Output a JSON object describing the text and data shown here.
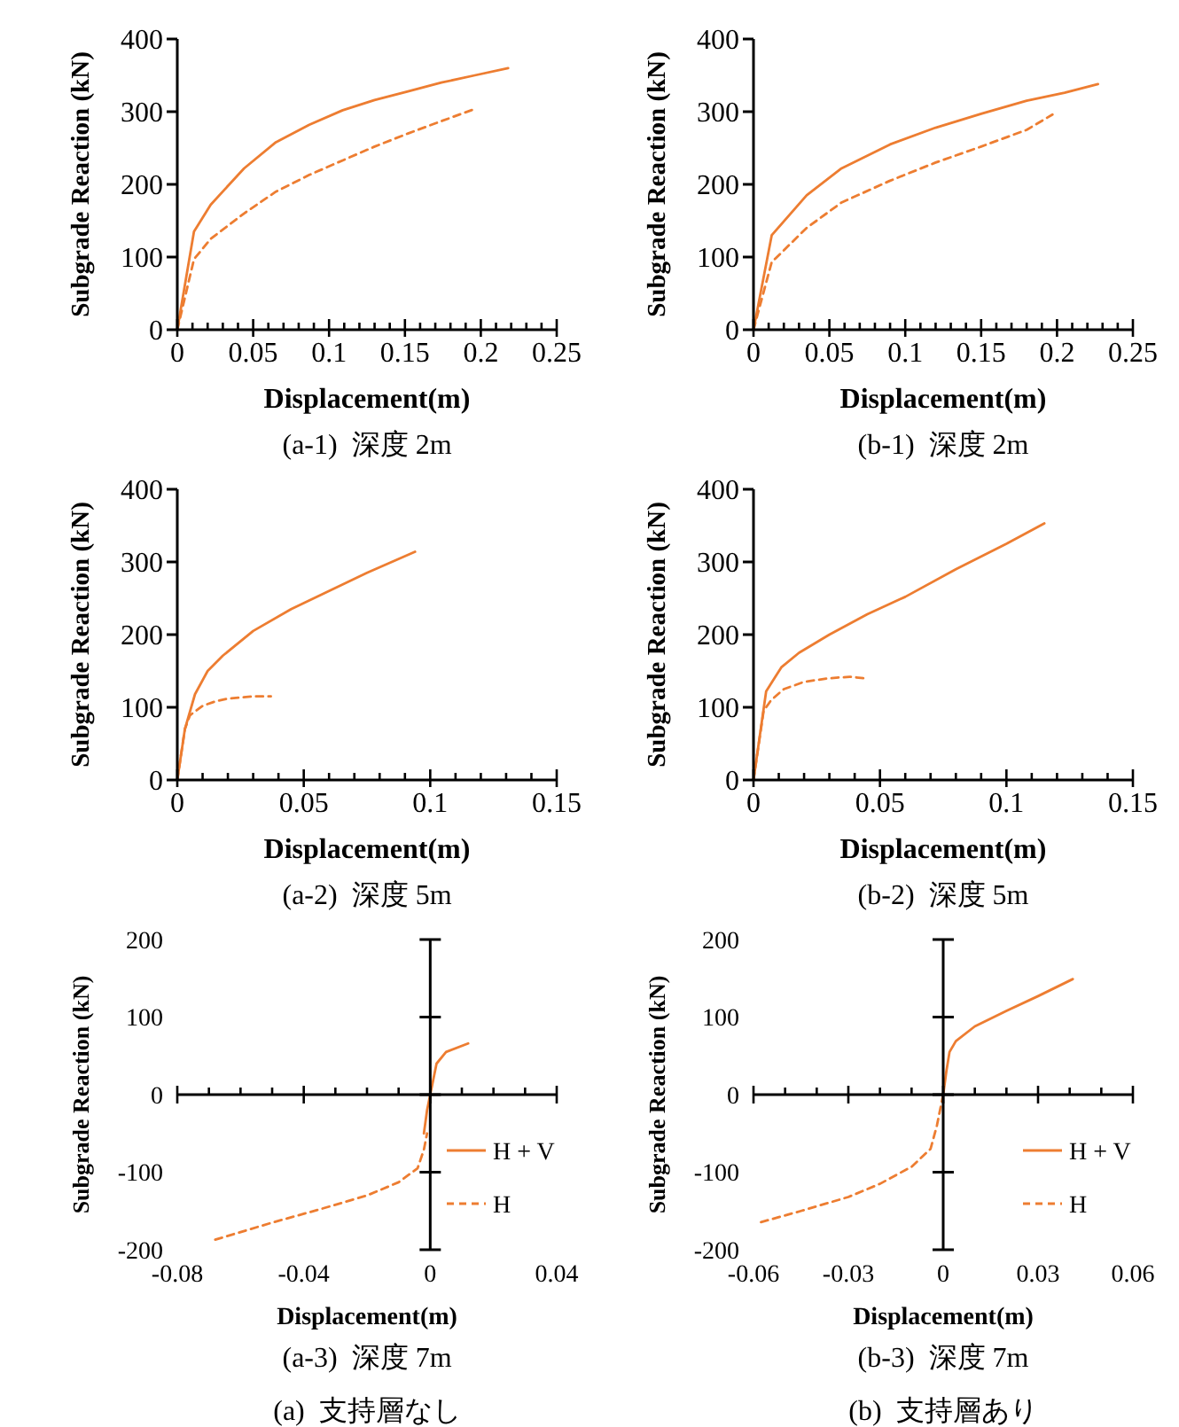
{
  "chart_data": [
    {
      "type": "line",
      "title": "(a-1)  深度 2m",
      "xlabel": "Displacement(m)",
      "ylabel": "Subgrade Reaction (kN)",
      "xlim": [
        0,
        0.25
      ],
      "ylim": [
        0,
        400
      ],
      "yticks": [
        0,
        100,
        200,
        300,
        400
      ],
      "xticks": [
        0,
        {
          "value": 0.01,
          "label": null
        },
        {
          "value": 0.02,
          "label": null
        },
        {
          "value": 0.03,
          "label": null
        },
        {
          "value": 0.04,
          "label": null
        },
        0.05,
        {
          "value": 0.06,
          "label": null
        },
        {
          "value": 0.07,
          "label": null
        },
        {
          "value": 0.08,
          "label": null
        },
        {
          "value": 0.09,
          "label": null
        },
        0.1,
        {
          "value": 0.11,
          "label": null
        },
        {
          "value": 0.12,
          "label": null
        },
        {
          "value": 0.13,
          "label": null
        },
        {
          "value": 0.14,
          "label": null
        },
        0.15,
        {
          "value": 0.16,
          "label": null
        },
        {
          "value": 0.17,
          "label": null
        },
        {
          "value": 0.18,
          "label": null
        },
        {
          "value": 0.19,
          "label": null
        },
        0.2,
        {
          "value": 0.21,
          "label": null
        },
        {
          "value": 0.22,
          "label": null
        },
        {
          "value": 0.23,
          "label": null
        },
        {
          "value": 0.24,
          "label": null
        },
        0.25
      ],
      "series": [
        {
          "color": "#ed7d31",
          "line_style": "solid",
          "x": [
            0,
            0.011,
            0.022,
            0.044,
            0.065,
            0.087,
            0.109,
            0.13,
            0.152,
            0.174,
            0.196,
            0.218
          ],
          "values": [
            0,
            135,
            172,
            222,
            258,
            282,
            302,
            316,
            328,
            340,
            350,
            360
          ]
        },
        {
          "color": "#ed7d31",
          "line_style": "dashed",
          "x": [
            0,
            0.011,
            0.022,
            0.044,
            0.065,
            0.087,
            0.109,
            0.13,
            0.152,
            0.174,
            0.195
          ],
          "values": [
            0,
            97,
            125,
            160,
            190,
            213,
            233,
            252,
            270,
            287,
            303
          ]
        }
      ],
      "grid": false,
      "legend": false
    },
    {
      "type": "line",
      "title": "(b-1)  深度 2m",
      "xlabel": "Displacement(m)",
      "ylabel": "Subgrade Reaction (kN)",
      "xlim": [
        0,
        0.25
      ],
      "ylim": [
        0,
        400
      ],
      "yticks": [
        0,
        100,
        200,
        300,
        400
      ],
      "xticks": [
        0,
        {
          "value": 0.01,
          "label": null
        },
        {
          "value": 0.02,
          "label": null
        },
        {
          "value": 0.03,
          "label": null
        },
        {
          "value": 0.04,
          "label": null
        },
        0.05,
        {
          "value": 0.06,
          "label": null
        },
        {
          "value": 0.07,
          "label": null
        },
        {
          "value": 0.08,
          "label": null
        },
        {
          "value": 0.09,
          "label": null
        },
        0.1,
        {
          "value": 0.11,
          "label": null
        },
        {
          "value": 0.12,
          "label": null
        },
        {
          "value": 0.13,
          "label": null
        },
        {
          "value": 0.14,
          "label": null
        },
        0.15,
        {
          "value": 0.16,
          "label": null
        },
        {
          "value": 0.17,
          "label": null
        },
        {
          "value": 0.18,
          "label": null
        },
        {
          "value": 0.19,
          "label": null
        },
        0.2,
        {
          "value": 0.21,
          "label": null
        },
        {
          "value": 0.22,
          "label": null
        },
        {
          "value": 0.23,
          "label": null
        },
        {
          "value": 0.24,
          "label": null
        },
        0.25
      ],
      "series": [
        {
          "color": "#ed7d31",
          "line_style": "solid",
          "x": [
            0,
            0.012,
            0.035,
            0.058,
            0.09,
            0.12,
            0.15,
            0.18,
            0.205,
            0.227
          ],
          "values": [
            0,
            130,
            185,
            222,
            255,
            278,
            297,
            315,
            326,
            338
          ]
        },
        {
          "color": "#ed7d31",
          "line_style": "dashed",
          "x": [
            0,
            0.012,
            0.035,
            0.058,
            0.09,
            0.12,
            0.15,
            0.18,
            0.197
          ],
          "values": [
            0,
            93,
            140,
            175,
            205,
            230,
            252,
            275,
            296
          ]
        }
      ],
      "grid": false,
      "legend": false
    },
    {
      "type": "line",
      "title": "(a-2)  深度 5m",
      "xlabel": "Displacement(m)",
      "ylabel": "Subgrade Reaction (kN)",
      "xlim": [
        0,
        0.15
      ],
      "ylim": [
        0,
        400
      ],
      "yticks": [
        0,
        100,
        200,
        300,
        400
      ],
      "xticks": [
        0,
        {
          "value": 0.01,
          "label": null
        },
        {
          "value": 0.02,
          "label": null
        },
        {
          "value": 0.03,
          "label": null
        },
        {
          "value": 0.04,
          "label": null
        },
        0.05,
        {
          "value": 0.06,
          "label": null
        },
        {
          "value": 0.07,
          "label": null
        },
        {
          "value": 0.08,
          "label": null
        },
        {
          "value": 0.09,
          "label": null
        },
        0.1,
        {
          "value": 0.11,
          "label": null
        },
        {
          "value": 0.12,
          "label": null
        },
        {
          "value": 0.13,
          "label": null
        },
        {
          "value": 0.14,
          "label": null
        },
        0.15
      ],
      "series": [
        {
          "color": "#ed7d31",
          "line_style": "solid",
          "x": [
            0,
            0.003,
            0.007,
            0.012,
            0.018,
            0.03,
            0.045,
            0.06,
            0.075,
            0.094
          ],
          "values": [
            0,
            70,
            118,
            150,
            171,
            205,
            235,
            260,
            285,
            314
          ]
        },
        {
          "color": "#ed7d31",
          "line_style": "dashed",
          "x": [
            0,
            0.003,
            0.005,
            0.01,
            0.015,
            0.02,
            0.03,
            0.037
          ],
          "values": [
            0,
            70,
            89,
            102,
            108,
            112,
            115,
            115
          ]
        }
      ],
      "grid": false,
      "legend": false
    },
    {
      "type": "line",
      "title": "(b-2)  深度 5m",
      "xlabel": "Displacement(m)",
      "ylabel": "Subgrade Reaction (kN)",
      "xlim": [
        0,
        0.15
      ],
      "ylim": [
        0,
        400
      ],
      "yticks": [
        0,
        100,
        200,
        300,
        400
      ],
      "xticks": [
        0,
        {
          "value": 0.01,
          "label": null
        },
        {
          "value": 0.02,
          "label": null
        },
        {
          "value": 0.03,
          "label": null
        },
        {
          "value": 0.04,
          "label": null
        },
        0.05,
        {
          "value": 0.06,
          "label": null
        },
        {
          "value": 0.07,
          "label": null
        },
        {
          "value": 0.08,
          "label": null
        },
        {
          "value": 0.09,
          "label": null
        },
        0.1,
        {
          "value": 0.11,
          "label": null
        },
        {
          "value": 0.12,
          "label": null
        },
        {
          "value": 0.13,
          "label": null
        },
        {
          "value": 0.14,
          "label": null
        },
        0.15
      ],
      "series": [
        {
          "color": "#ed7d31",
          "line_style": "solid",
          "x": [
            0,
            0.005,
            0.011,
            0.018,
            0.03,
            0.045,
            0.06,
            0.08,
            0.1,
            0.115
          ],
          "values": [
            0,
            122,
            155,
            175,
            200,
            228,
            252,
            290,
            325,
            353
          ]
        },
        {
          "color": "#ed7d31",
          "line_style": "dashed",
          "x": [
            0,
            0.004,
            0.007,
            0.012,
            0.02,
            0.03,
            0.038,
            0.044
          ],
          "values": [
            0,
            95,
            110,
            125,
            135,
            140,
            142,
            140
          ]
        }
      ],
      "grid": false,
      "legend": false
    },
    {
      "type": "line",
      "title": "(a-3)  深度 7m",
      "subtitle": "(a)  支持層なし",
      "xlabel": "Displacement(m)",
      "ylabel": "Subgrade Reaction (kN)",
      "xlim": [
        -0.08,
        0.04
      ],
      "ylim": [
        -200,
        200
      ],
      "yticks": [
        -200,
        -100,
        0,
        100,
        200
      ],
      "xticks": [
        -0.08,
        {
          "value": -0.07,
          "label": null
        },
        {
          "value": -0.06,
          "label": null
        },
        {
          "value": -0.05,
          "label": null
        },
        -0.04,
        {
          "value": -0.03,
          "label": null
        },
        {
          "value": -0.02,
          "label": null
        },
        {
          "value": -0.01,
          "label": null
        },
        0,
        {
          "value": 0.01,
          "label": null
        },
        {
          "value": 0.02,
          "label": null
        },
        {
          "value": 0.03,
          "label": null
        },
        0.04
      ],
      "series": [
        {
          "name": "H + V",
          "color": "#ed7d31",
          "line_style": "solid",
          "x": [
            -0.002,
            -0.001,
            0,
            0.002,
            0.005,
            0.012
          ],
          "values": [
            -50,
            -20,
            0,
            40,
            55,
            66
          ]
        },
        {
          "name": "H",
          "color": "#ed7d31",
          "line_style": "dashed",
          "x": [
            -0.068,
            -0.05,
            -0.035,
            -0.02,
            -0.01,
            -0.004,
            -0.002,
            -0.001
          ],
          "values": [
            -187,
            -165,
            -148,
            -130,
            -113,
            -95,
            -71,
            -50
          ]
        }
      ],
      "legend": "right"
    },
    {
      "type": "line",
      "title": "(b-3)  深度 7m",
      "subtitle": "(b)  支持層あり",
      "xlabel": "Displacement(m)",
      "ylabel": "Subgrade Reaction (kN)",
      "xlim": [
        -0.06,
        0.06
      ],
      "ylim": [
        -200,
        200
      ],
      "yticks": [
        -200,
        -100,
        0,
        100,
        200
      ],
      "xticks": [
        -0.06,
        {
          "value": -0.05,
          "label": null
        },
        {
          "value": -0.04,
          "label": null
        },
        -0.03,
        {
          "value": -0.02,
          "label": null
        },
        {
          "value": -0.01,
          "label": null
        },
        0,
        {
          "value": 0.01,
          "label": null
        },
        {
          "value": 0.02,
          "label": null
        },
        0.03,
        {
          "value": 0.04,
          "label": null
        },
        {
          "value": 0.05,
          "label": null
        },
        0.06
      ],
      "series": [
        {
          "name": "H + V",
          "color": "#ed7d31",
          "line_style": "solid",
          "x": [
            0,
            0.001,
            0.002,
            0.004,
            0.01,
            0.02,
            0.03,
            0.041
          ],
          "values": [
            0,
            30,
            55,
            69,
            88,
            108,
            127,
            149
          ]
        },
        {
          "name": "H",
          "color": "#ed7d31",
          "line_style": "dashed",
          "x": [
            0,
            -0.002,
            -0.004,
            -0.01,
            -0.02,
            -0.03,
            -0.045,
            -0.059
          ],
          "values": [
            0,
            -40,
            -70,
            -93,
            -115,
            -132,
            -150,
            -166
          ]
        }
      ],
      "legend": "right"
    }
  ]
}
